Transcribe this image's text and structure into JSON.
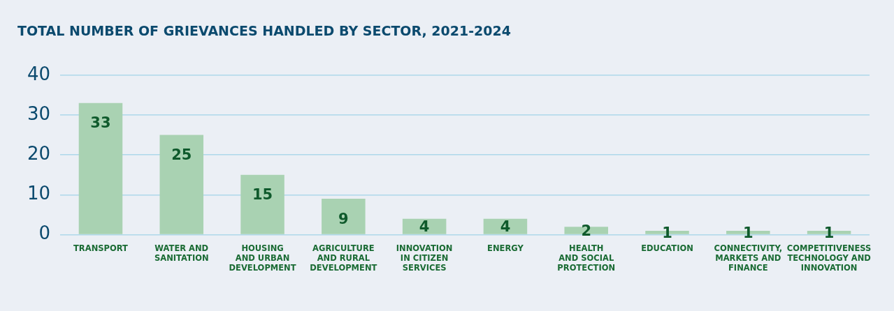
{
  "chart_data": {
    "type": "bar",
    "title": "TOTAL NUMBER OF GRIEVANCES HANDLED BY SECTOR, 2021-2024",
    "categories": [
      "TRANSPORT",
      "WATER AND\nSANITATION",
      "HOUSING\nAND URBAN\nDEVELOPMENT",
      "AGRICULTURE\nAND RURAL\nDEVELOPMENT",
      "INNOVATION\nIN CITIZEN\nSERVICES",
      "ENERGY",
      "HEALTH\nAND SOCIAL\nPROTECTION",
      "EDUCATION",
      "CONNECTIVITY,\nMARKETS AND\nFINANCE",
      "COMPETITIVENESS\nTECHNOLOGY AND\nINNOVATION"
    ],
    "values": [
      33,
      25,
      15,
      9,
      4,
      4,
      2,
      1,
      1,
      1
    ],
    "color": "#a9d2b2",
    "ylim": [
      0,
      40
    ],
    "yticks": [
      0,
      10,
      20,
      30,
      40
    ],
    "grid": "y",
    "data_labels": true,
    "legend": false
  }
}
